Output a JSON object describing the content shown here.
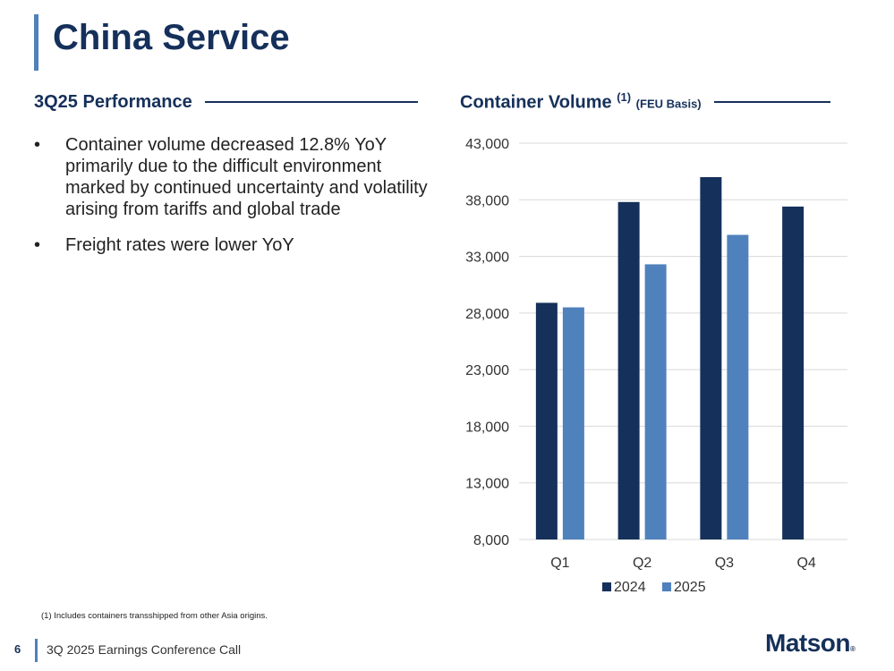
{
  "title": "China Service",
  "left_section": {
    "heading": "3Q25 Performance",
    "bullets": [
      "Container volume decreased 12.8% YoY primarily due to the difficult environment marked by continued uncertainty and volatility arising from tariffs and global trade",
      "Freight rates were lower YoY"
    ]
  },
  "right_section": {
    "heading": "Container Volume",
    "heading_sup": "(1)",
    "heading_sub": "(FEU Basis)"
  },
  "chart_data": {
    "type": "bar",
    "title": "Container Volume (1) (FEU Basis)",
    "categories": [
      "Q1",
      "Q2",
      "Q3",
      "Q4"
    ],
    "series": [
      {
        "name": "2024",
        "values": [
          28900,
          37800,
          40000,
          37400
        ],
        "color": "#15305a"
      },
      {
        "name": "2025",
        "values": [
          28500,
          32300,
          34900,
          null
        ],
        "color": "#4f81bd"
      }
    ],
    "ylim": [
      8000,
      43000
    ],
    "yticks": [
      8000,
      13000,
      18000,
      23000,
      28000,
      33000,
      38000,
      43000
    ],
    "ytick_labels": [
      "8,000",
      "13,000",
      "18,000",
      "23,000",
      "28,000",
      "33,000",
      "38,000",
      "43,000"
    ],
    "xlabel": "",
    "ylabel": "",
    "grid": true,
    "legend": "bottom"
  },
  "footnote": "(1)  Includes containers transshipped from other Asia origins.",
  "footer": {
    "page_number": "6",
    "text": "3Q 2025 Earnings Conference Call"
  },
  "logo": {
    "text": "Matson",
    "mark": "®"
  },
  "colors": {
    "navy": "#15305a",
    "accent": "#4f81bd",
    "grid": "#d9d9d9"
  }
}
